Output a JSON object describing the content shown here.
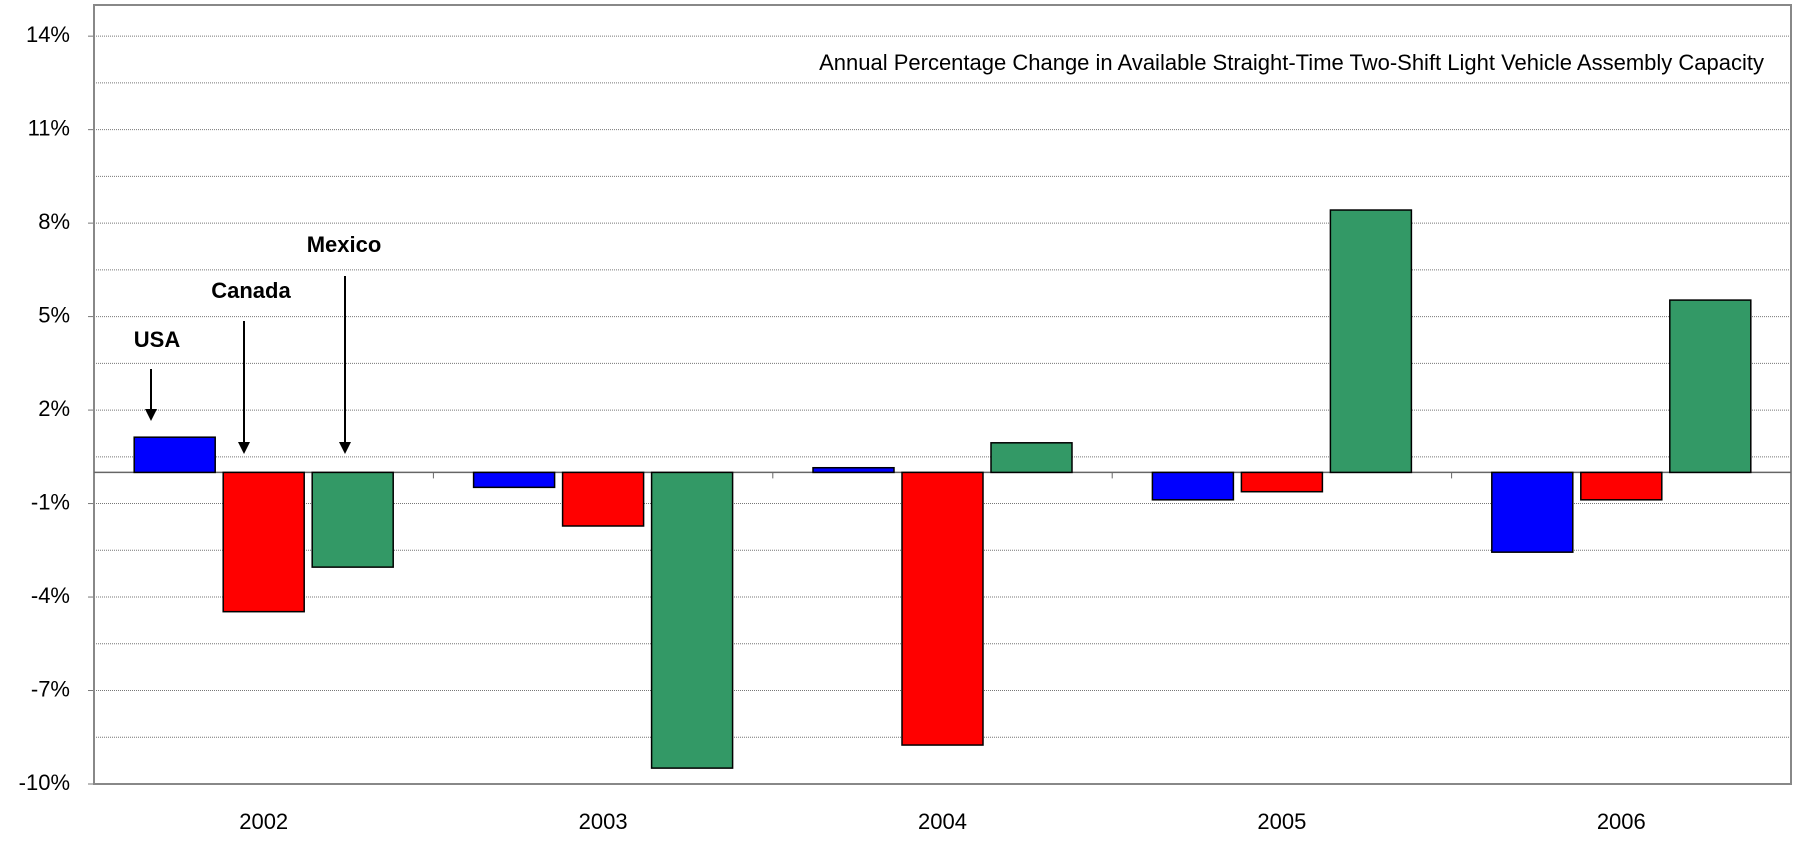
{
  "chart_data": {
    "type": "bar",
    "title": "Annual Percentage Change in Available Straight-Time Two-Shift Light Vehicle Assembly Capacity",
    "categories": [
      "2002",
      "2003",
      "2004",
      "2005",
      "2006"
    ],
    "series": [
      {
        "name": "USA",
        "color": "#0000ff",
        "values": [
          1.13,
          -0.48,
          0.15,
          -0.88,
          -2.56
        ]
      },
      {
        "name": "Canada",
        "color": "#ff0000",
        "values": [
          -4.47,
          -1.72,
          -8.75,
          -0.62,
          -0.88
        ]
      },
      {
        "name": "Mexico",
        "color": "#339966",
        "values": [
          -3.04,
          -9.49,
          0.95,
          8.42,
          5.53
        ]
      }
    ],
    "ylim": [
      -10,
      15
    ],
    "yticks": [
      {
        "value": -10,
        "label": "-10%"
      },
      {
        "value": -7,
        "label": "-7%"
      },
      {
        "value": -4,
        "label": "-4%"
      },
      {
        "value": -1,
        "label": "-1%"
      },
      {
        "value": 2,
        "label": "2%"
      },
      {
        "value": 5,
        "label": "5%"
      },
      {
        "value": 8,
        "label": "8%"
      },
      {
        "value": 11,
        "label": "11%"
      },
      {
        "value": 14,
        "label": "14%"
      }
    ],
    "minor_yticks": [
      -8.5,
      -5.5,
      -2.5,
      0.5,
      3.5,
      6.5,
      9.5,
      12.5
    ],
    "grid": true
  }
}
